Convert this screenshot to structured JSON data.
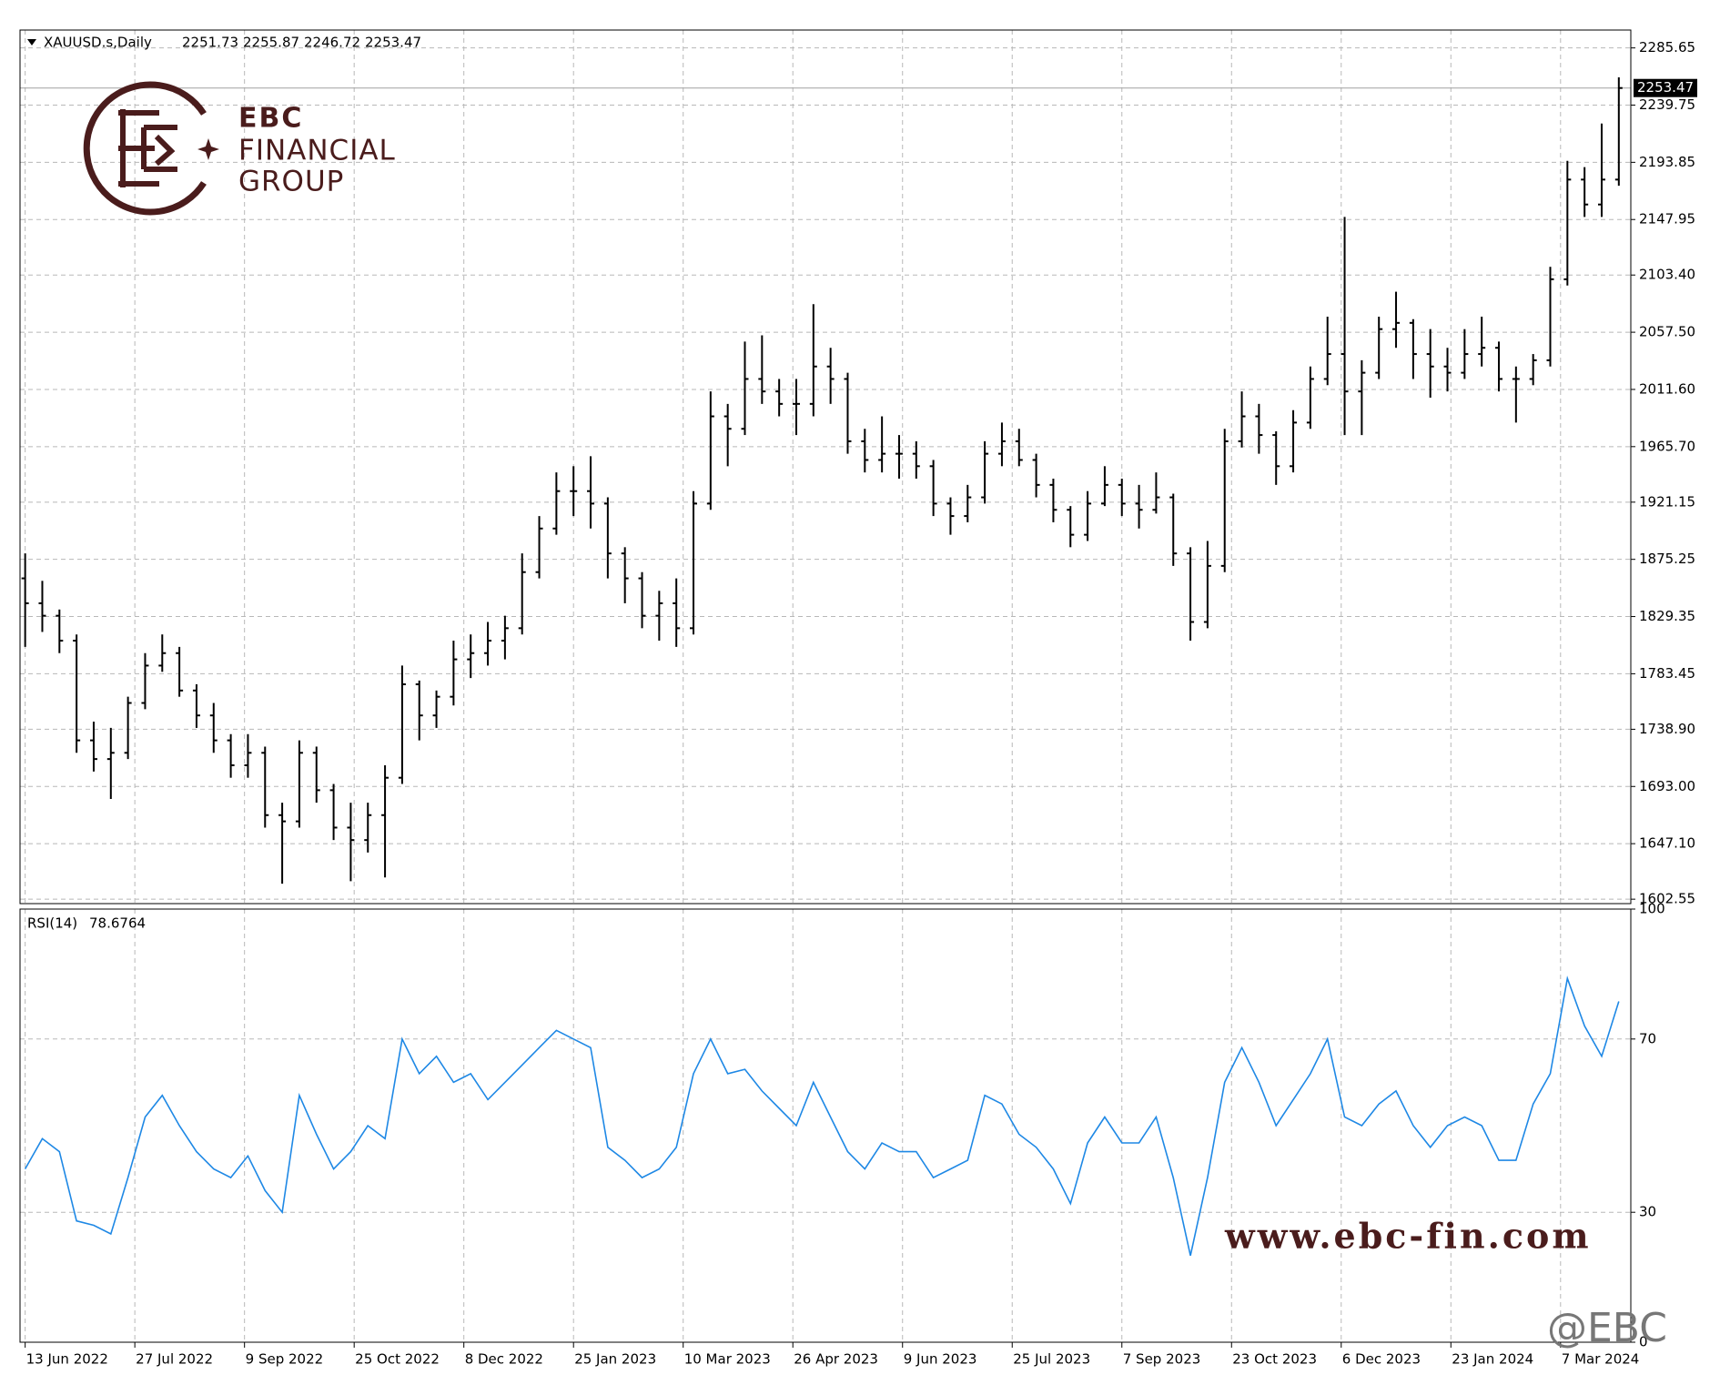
{
  "chart_data": [
    {
      "type": "ohlc",
      "title": "XAUUSD.s,Daily",
      "header_values": [
        2251.73,
        2255.87,
        2246.72,
        2253.47
      ],
      "color": "#000000",
      "grid": true,
      "last_price": 2253.47,
      "open": [
        1860,
        1840,
        1830,
        1810,
        1730,
        1715,
        1720,
        1760,
        1790,
        1800,
        1770,
        1750,
        1730,
        1710,
        1720,
        1670,
        1665,
        1720,
        1690,
        1660,
        1650,
        1670,
        1700,
        1775,
        1750,
        1765,
        1795,
        1800,
        1810,
        1820,
        1865,
        1900,
        1930,
        1930,
        1920,
        1880,
        1860,
        1830,
        1840,
        1820,
        1920,
        1990,
        1980,
        2020,
        2010,
        2000,
        2000,
        2030,
        2020,
        1970,
        1955,
        1960,
        1960,
        1950,
        1920,
        1910,
        1925,
        1960,
        1970,
        1955,
        1935,
        1915,
        1895,
        1920,
        1935,
        1920,
        1915,
        1925,
        1880,
        1825,
        1870,
        1970,
        1990,
        1975,
        1950,
        1985,
        2020,
        2040,
        2010,
        2025,
        2060,
        2065,
        2040,
        2030,
        2025,
        2040,
        2045,
        2020,
        2020,
        2035,
        2100,
        2180,
        2160,
        2180
      ],
      "high": [
        1880,
        1858,
        1835,
        1815,
        1745,
        1740,
        1765,
        1800,
        1815,
        1805,
        1775,
        1760,
        1735,
        1735,
        1725,
        1680,
        1730,
        1725,
        1695,
        1680,
        1680,
        1710,
        1790,
        1778,
        1770,
        1810,
        1815,
        1825,
        1830,
        1880,
        1910,
        1945,
        1950,
        1958,
        1925,
        1885,
        1865,
        1850,
        1860,
        1930,
        2010,
        2000,
        2050,
        2055,
        2020,
        2020,
        2080,
        2045,
        2025,
        1980,
        1990,
        1975,
        1970,
        1955,
        1925,
        1935,
        1970,
        1985,
        1980,
        1960,
        1940,
        1918,
        1930,
        1950,
        1940,
        1935,
        1945,
        1928,
        1885,
        1890,
        1980,
        2010,
        2000,
        1978,
        1995,
        2030,
        2070,
        2150,
        2035,
        2070,
        2090,
        2068,
        2060,
        2045,
        2060,
        2070,
        2050,
        2030,
        2040,
        2110,
        2195,
        2190,
        2225,
        2262
      ],
      "low": [
        1805,
        1817,
        1800,
        1720,
        1705,
        1683,
        1715,
        1755,
        1785,
        1765,
        1740,
        1720,
        1700,
        1700,
        1660,
        1615,
        1660,
        1680,
        1650,
        1617,
        1640,
        1620,
        1695,
        1730,
        1740,
        1758,
        1780,
        1790,
        1795,
        1815,
        1860,
        1895,
        1910,
        1900,
        1860,
        1840,
        1820,
        1810,
        1805,
        1815,
        1915,
        1950,
        1975,
        2000,
        1990,
        1975,
        1990,
        2000,
        1960,
        1945,
        1945,
        1940,
        1940,
        1910,
        1895,
        1905,
        1920,
        1950,
        1950,
        1925,
        1905,
        1885,
        1890,
        1918,
        1910,
        1900,
        1912,
        1870,
        1810,
        1820,
        1865,
        1965,
        1960,
        1935,
        1945,
        1980,
        2015,
        1975,
        1975,
        2020,
        2045,
        2020,
        2005,
        2010,
        2020,
        2030,
        2010,
        1985,
        2015,
        2030,
        2095,
        2150,
        2150,
        2175
      ],
      "close": [
        1840,
        1830,
        1810,
        1730,
        1715,
        1720,
        1760,
        1790,
        1800,
        1770,
        1750,
        1730,
        1710,
        1720,
        1670,
        1665,
        1720,
        1690,
        1660,
        1650,
        1670,
        1700,
        1775,
        1750,
        1765,
        1795,
        1800,
        1810,
        1820,
        1865,
        1900,
        1930,
        1930,
        1920,
        1880,
        1860,
        1830,
        1840,
        1820,
        1920,
        1990,
        1980,
        2020,
        2010,
        2000,
        2000,
        2030,
        2020,
        1970,
        1955,
        1960,
        1960,
        1950,
        1920,
        1910,
        1925,
        1960,
        1970,
        1955,
        1935,
        1915,
        1895,
        1920,
        1935,
        1920,
        1915,
        1925,
        1880,
        1825,
        1870,
        1970,
        1990,
        1975,
        1950,
        1985,
        2020,
        2040,
        2010,
        2025,
        2060,
        2065,
        2040,
        2030,
        2025,
        2040,
        2045,
        2020,
        2020,
        2035,
        2100,
        2180,
        2160,
        2180,
        2253.47
      ],
      "ylim": [
        1599,
        2300
      ],
      "yticks": [
        2285.65,
        2239.75,
        2193.85,
        2147.95,
        {
          "value": 2103.4,
          "label": "2103.40"
        },
        {
          "value": 2057.5,
          "label": "2057.50"
        },
        {
          "value": 2011.6,
          "label": "2011.60"
        },
        {
          "value": 1965.7,
          "label": "1965.70"
        },
        1921.15,
        1875.25,
        1829.35,
        1783.45,
        {
          "value": 1738.9,
          "label": "1738.90"
        },
        {
          "value": 1693.0,
          "label": "1693.00"
        },
        {
          "value": 1647.1,
          "label": "1647.10"
        },
        1602.55
      ],
      "xlim": [
        -0.3,
        93.7
      ],
      "xticks": [
        {
          "value": 0,
          "label": "13 Jun 2022"
        },
        {
          "value": 6.4,
          "label": "27 Jul 2022"
        },
        {
          "value": 12.8,
          "label": "9 Sep 2022"
        },
        {
          "value": 19.2,
          "label": "25 Oct 2022"
        },
        {
          "value": 25.6,
          "label": "8 Dec 2022"
        },
        {
          "value": 32,
          "label": "25 Jan 2023"
        },
        {
          "value": 38.4,
          "label": "10 Mar 2023"
        },
        {
          "value": 44.8,
          "label": "26 Apr 2023"
        },
        {
          "value": 51.2,
          "label": "9 Jun 2023"
        },
        {
          "value": 57.6,
          "label": "25 Jul 2023"
        },
        {
          "value": 64,
          "label": "7 Sep 2023"
        },
        {
          "value": 70.4,
          "label": "23 Oct 2023"
        },
        {
          "value": 76.8,
          "label": "6 Dec 2023"
        },
        {
          "value": 83.2,
          "label": "23 Jan 2024"
        },
        {
          "value": 89.6,
          "label": "7 Mar 2024"
        }
      ]
    },
    {
      "type": "line",
      "title": "RSI(14)",
      "header_value": 78.6764,
      "color": "#1e88e5",
      "values": [
        40,
        47,
        44,
        28,
        27,
        25,
        38,
        52,
        57,
        50,
        44,
        40,
        38,
        43,
        35,
        30,
        57,
        48,
        40,
        44,
        50,
        47,
        70,
        62,
        66,
        60,
        62,
        56,
        60,
        64,
        68,
        72,
        70,
        68,
        45,
        42,
        38,
        40,
        45,
        62,
        70,
        62,
        63,
        58,
        54,
        50,
        60,
        52,
        44,
        40,
        46,
        44,
        44,
        38,
        40,
        42,
        57,
        55,
        48,
        45,
        40,
        32,
        46,
        52,
        46,
        46,
        52,
        38,
        20,
        38,
        60,
        68,
        60,
        50,
        56,
        62,
        70,
        52,
        50,
        55,
        58,
        50,
        45,
        50,
        52,
        50,
        42,
        42,
        55,
        62,
        84,
        73,
        66,
        78.6764
      ],
      "ylim": [
        0,
        100
      ],
      "yticks": [
        100,
        70,
        30,
        0
      ],
      "xlim": [
        -0.3,
        93.7
      ]
    }
  ],
  "logo": {
    "name": "EBC",
    "line1": "FINANCIAL",
    "line2": "GROUP"
  },
  "watermark": "www.ebc-fin.com",
  "handle": "@EBC"
}
